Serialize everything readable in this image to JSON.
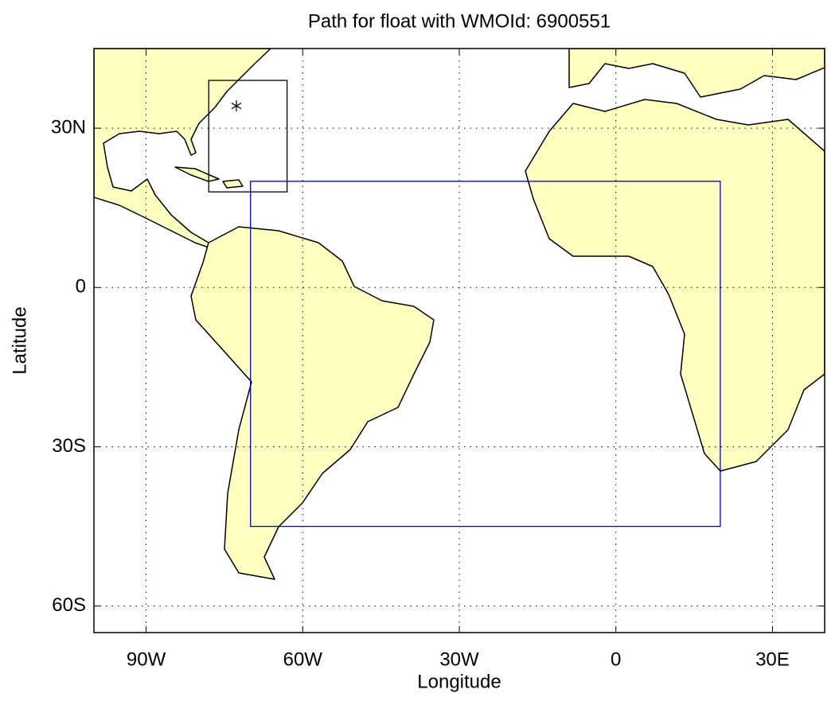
{
  "chart_data": {
    "type": "map",
    "title": "Path for float with WMOId: 6900551",
    "x_label": "Longitude",
    "y_label": "Latitude",
    "xlim": [
      -100,
      40
    ],
    "ylim": [
      -65,
      45
    ],
    "xticks": [
      {
        "value": -90,
        "label": "90W"
      },
      {
        "value": -60,
        "label": "60W"
      },
      {
        "value": -30,
        "label": "30W"
      },
      0,
      {
        "value": 30,
        "label": "30E"
      }
    ],
    "yticks": [
      {
        "value": -60,
        "label": "60S"
      },
      {
        "value": -30,
        "label": "30S"
      },
      0,
      {
        "value": 30,
        "label": "30N"
      }
    ],
    "grid": true,
    "land_color": "#ffffc0",
    "regions": [
      {
        "color": "#000000",
        "lon": [
          -78,
          -63
        ],
        "lat": [
          18,
          39
        ]
      },
      {
        "color": "#0000cc",
        "lon": [
          -70,
          20
        ],
        "lat": [
          -45,
          20
        ]
      }
    ],
    "float_positions": {
      "lon": [
        -72.7
      ],
      "lat": [
        34.2
      ]
    }
  }
}
